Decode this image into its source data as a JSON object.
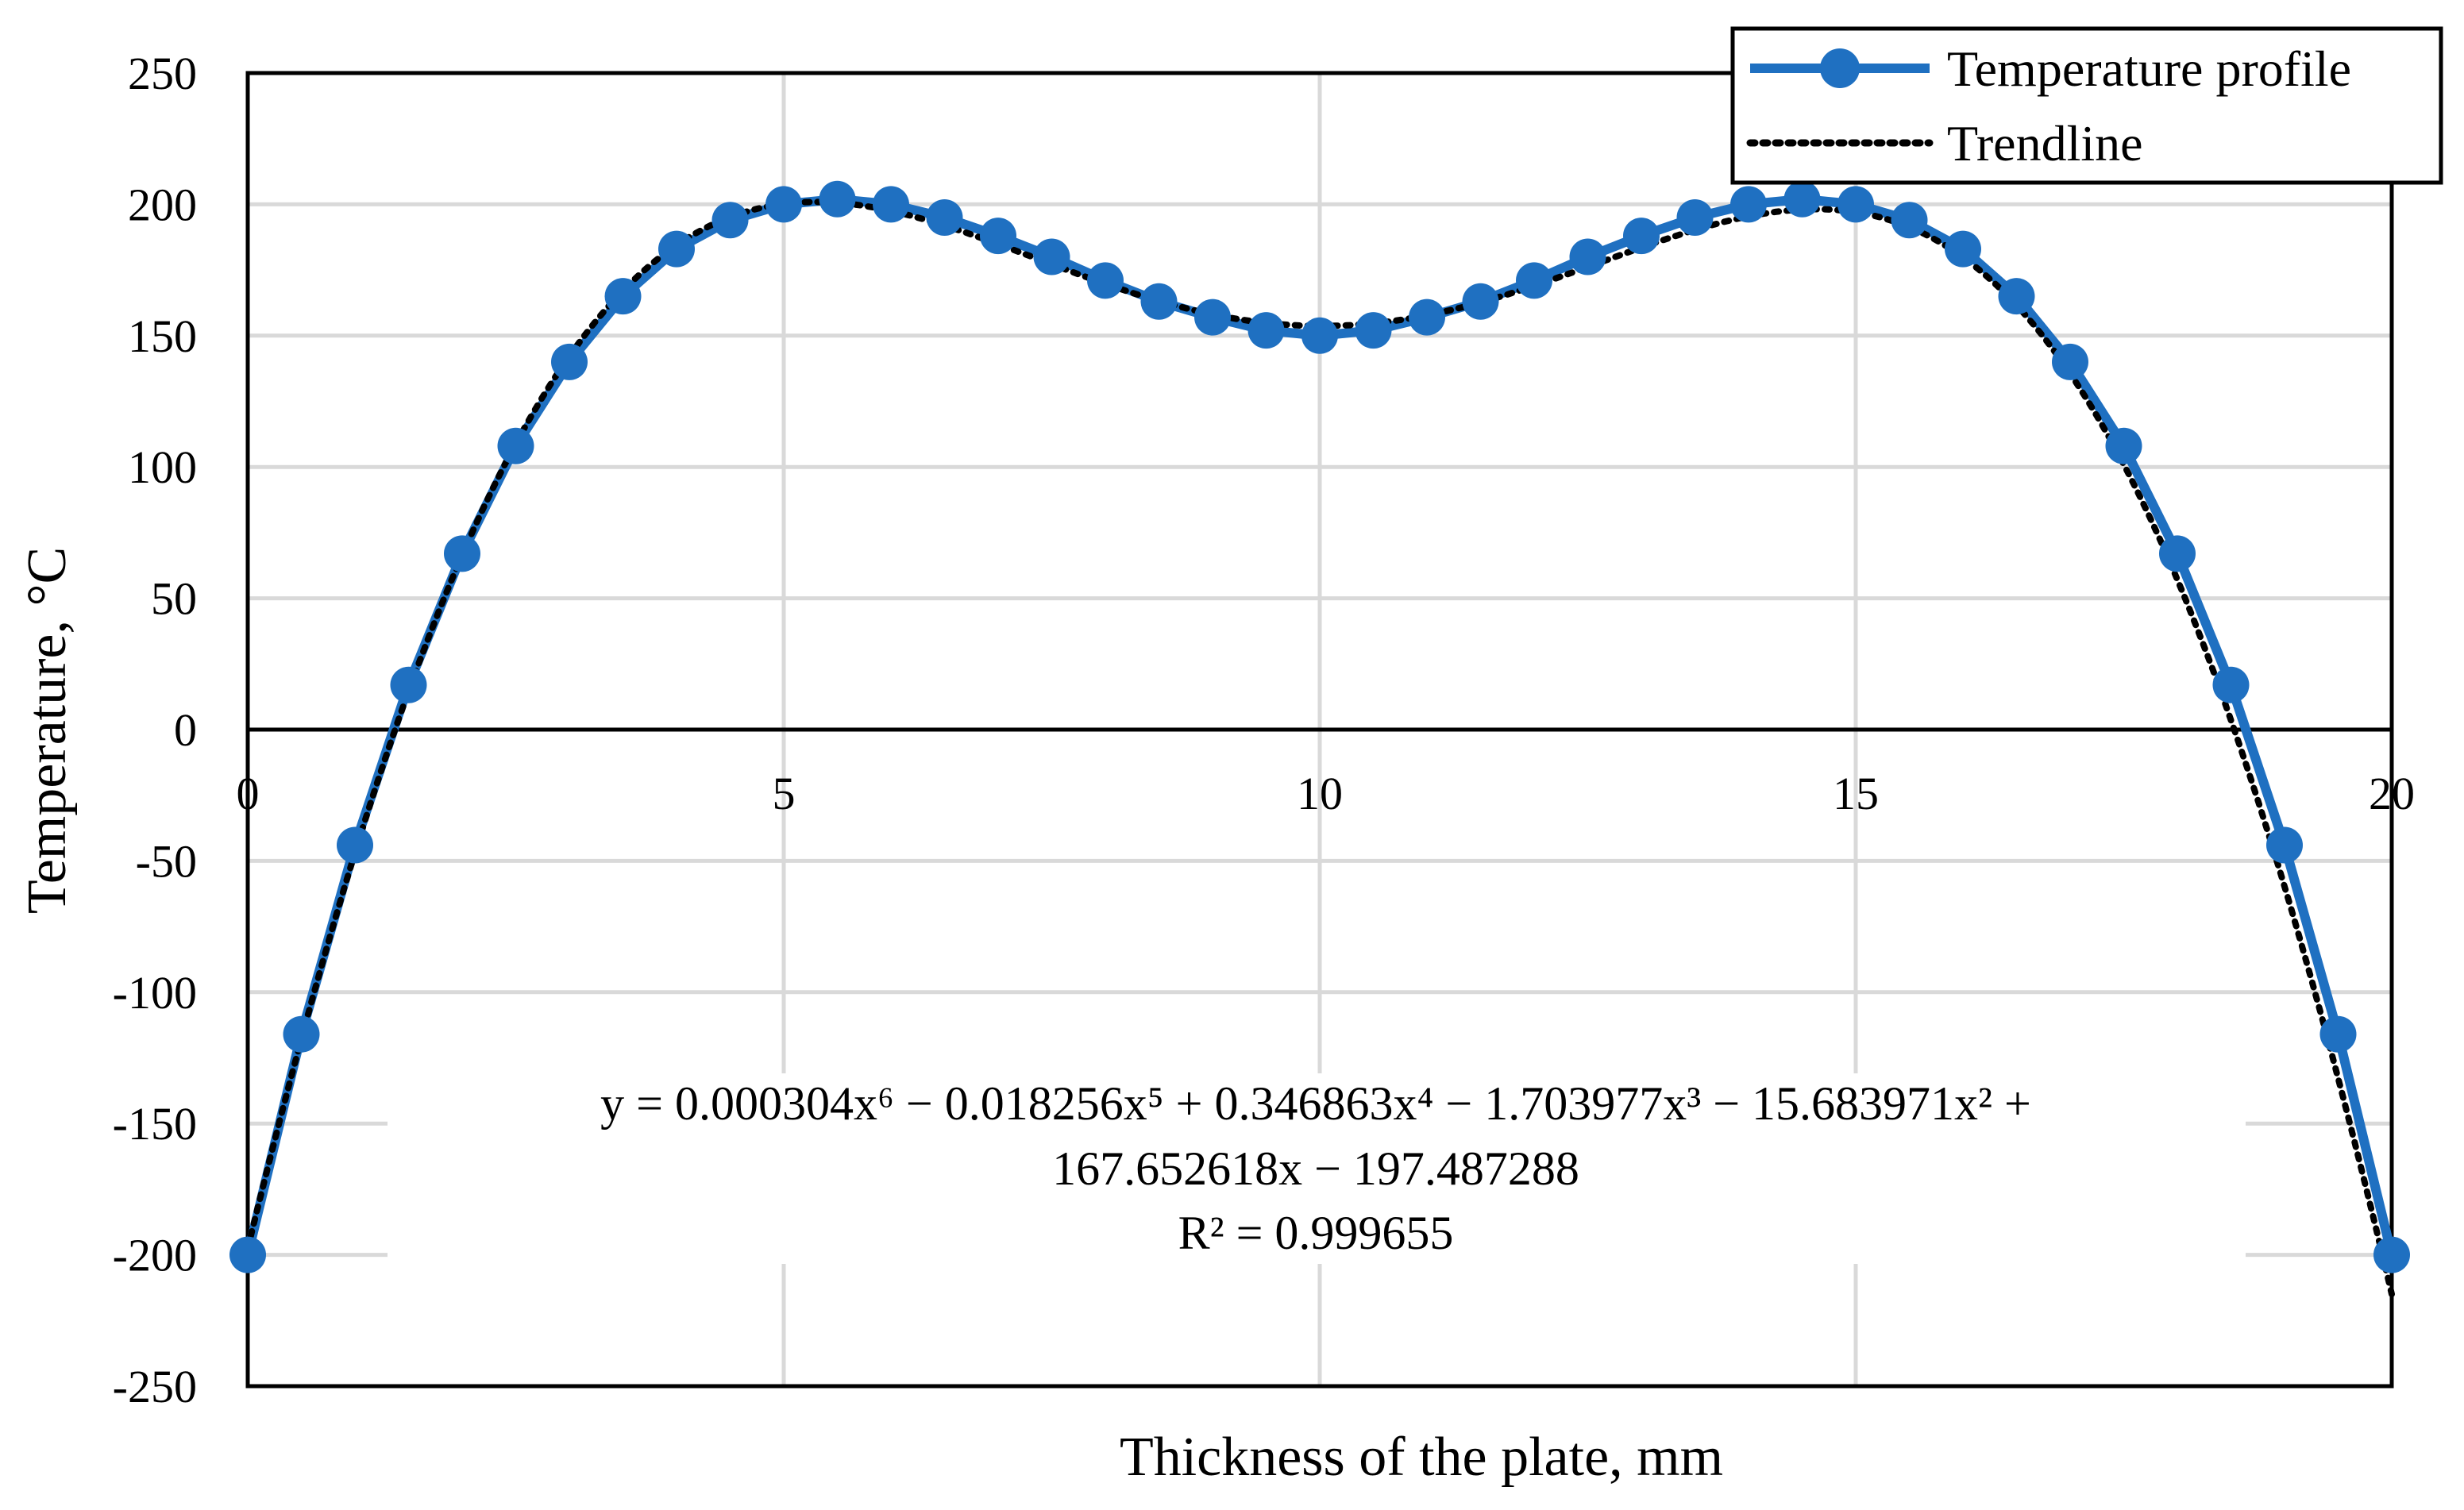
{
  "chart_data": {
    "type": "line",
    "xlabel": "Thickness of the plate, mm",
    "ylabel": "Temperature, °C",
    "xlim": [
      0,
      20
    ],
    "ylim": [
      -250,
      250
    ],
    "x_ticks": [
      0,
      5,
      10,
      15,
      20
    ],
    "x_tick_labels": [
      "0",
      "5",
      "10",
      "15",
      "20"
    ],
    "y_ticks": [
      250,
      200,
      150,
      100,
      50,
      0,
      -50,
      -100,
      -150,
      -200,
      -250
    ],
    "y_tick_labels": [
      "250",
      "200",
      "150",
      "100",
      "50",
      "0",
      "-50",
      "-100",
      "-150",
      "-200",
      "-250"
    ],
    "grid": true,
    "legend_position": "top-right",
    "series": [
      {
        "name": "Temperature profile",
        "style": "solid line with circle markers",
        "color": "#1f70c1",
        "x": [
          0,
          0.5,
          1,
          1.5,
          2,
          2.5,
          3,
          3.5,
          4,
          4.5,
          5,
          5.5,
          6,
          6.5,
          7,
          7.5,
          8,
          8.5,
          9,
          9.5,
          10,
          10.5,
          11,
          11.5,
          12,
          12.5,
          13,
          13.5,
          14,
          14.5,
          15,
          15.5,
          16,
          16.5,
          17,
          17.5,
          18,
          18.5,
          19,
          19.5,
          20
        ],
        "values": [
          -200,
          -116,
          -44,
          17,
          67,
          108,
          140,
          165,
          183,
          194,
          200,
          202,
          200,
          195,
          188,
          180,
          171,
          163,
          157,
          152,
          150,
          152,
          157,
          163,
          171,
          180,
          188,
          195,
          200,
          202,
          200,
          194,
          183,
          165,
          140,
          108,
          67,
          17,
          -44,
          -116,
          -200
        ]
      },
      {
        "name": "Trendline",
        "style": "dotted black polynomial (order 6)",
        "color": "#000000",
        "coefficients": [
          0.000304,
          -0.018256,
          0.346863,
          -1.703977,
          -15.683971,
          167.652618,
          -197.487288
        ]
      }
    ],
    "annotations": {
      "equation_line1": "y = 0.000304x⁶ − 0.018256x⁵ + 0.346863x⁴ − 1.703977x³ − 15.683971x² +",
      "equation_line2": "167.652618x − 197.487288",
      "r_squared": "R² = 0.999655"
    }
  }
}
